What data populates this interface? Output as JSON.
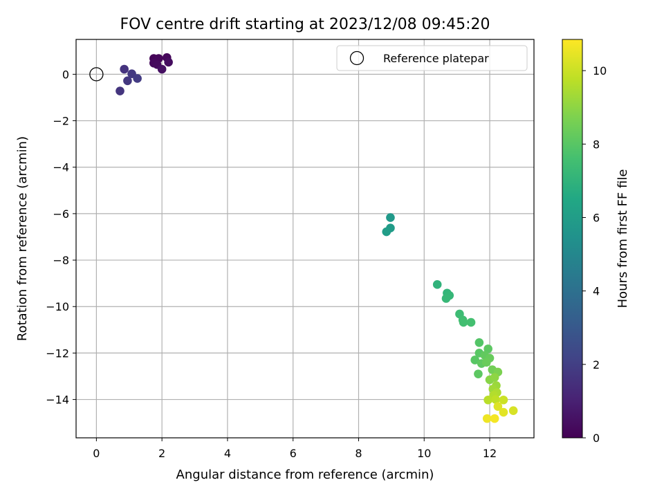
{
  "chart_data": {
    "type": "scatter",
    "title": "FOV centre drift starting at 2023/12/08 09:45:20",
    "xlabel": "Angular distance from reference (arcmin)",
    "ylabel": "Rotation from reference (arcmin)",
    "xlim": [
      -0.62,
      13.35
    ],
    "ylim": [
      -15.65,
      1.5
    ],
    "xticks": [
      0,
      2,
      4,
      6,
      8,
      10,
      12
    ],
    "yticks": [
      0,
      -2,
      -4,
      -6,
      -8,
      -10,
      -12,
      -14
    ],
    "xtick_labels": [
      "0",
      "2",
      "4",
      "6",
      "8",
      "10",
      "12"
    ],
    "ytick_labels": [
      "0",
      "−2",
      "−4",
      "−6",
      "−8",
      "−10",
      "−12",
      "−14"
    ],
    "grid": true,
    "colormap": "viridis",
    "colorbar": {
      "label": "Hours from first FF file",
      "range": [
        0,
        10.85
      ],
      "ticks": [
        0,
        2,
        4,
        6,
        8,
        10
      ],
      "tick_labels": [
        "0",
        "2",
        "4",
        "6",
        "8",
        "10"
      ]
    },
    "legend": {
      "label": "Reference platepar",
      "position": "top-right"
    },
    "reference": {
      "x": 0,
      "y": 0
    },
    "points": [
      {
        "x": 1.75,
        "y": 0.68,
        "t": 0.1
      },
      {
        "x": 1.9,
        "y": 0.68,
        "t": 0.15
      },
      {
        "x": 2.15,
        "y": 0.72,
        "t": 0.2
      },
      {
        "x": 1.75,
        "y": 0.48,
        "t": 0.25
      },
      {
        "x": 1.85,
        "y": 0.42,
        "t": 0.3
      },
      {
        "x": 2.2,
        "y": 0.52,
        "t": 0.35
      },
      {
        "x": 2.0,
        "y": 0.22,
        "t": 0.45
      },
      {
        "x": 0.85,
        "y": 0.22,
        "t": 1.6
      },
      {
        "x": 1.08,
        "y": 0.02,
        "t": 1.8
      },
      {
        "x": 1.25,
        "y": -0.18,
        "t": 1.9
      },
      {
        "x": 0.95,
        "y": -0.28,
        "t": 1.75
      },
      {
        "x": 0.72,
        "y": -0.72,
        "t": 1.65
      },
      {
        "x": 8.97,
        "y": -6.17,
        "t": 5.8
      },
      {
        "x": 8.97,
        "y": -6.62,
        "t": 5.9
      },
      {
        "x": 8.85,
        "y": -6.78,
        "t": 6.0
      },
      {
        "x": 10.4,
        "y": -9.05,
        "t": 7.0
      },
      {
        "x": 10.7,
        "y": -9.42,
        "t": 7.1
      },
      {
        "x": 10.77,
        "y": -9.52,
        "t": 7.15
      },
      {
        "x": 10.67,
        "y": -9.65,
        "t": 7.2
      },
      {
        "x": 11.08,
        "y": -10.32,
        "t": 7.4
      },
      {
        "x": 11.18,
        "y": -10.58,
        "t": 7.5
      },
      {
        "x": 11.2,
        "y": -10.68,
        "t": 7.55
      },
      {
        "x": 11.43,
        "y": -10.68,
        "t": 7.6
      },
      {
        "x": 11.68,
        "y": -11.55,
        "t": 7.9
      },
      {
        "x": 11.95,
        "y": -11.82,
        "t": 8.1
      },
      {
        "x": 11.68,
        "y": -12.0,
        "t": 8.0
      },
      {
        "x": 11.85,
        "y": -12.1,
        "t": 8.2
      },
      {
        "x": 12.0,
        "y": -12.22,
        "t": 8.3
      },
      {
        "x": 11.55,
        "y": -12.3,
        "t": 8.0
      },
      {
        "x": 11.75,
        "y": -12.45,
        "t": 8.15
      },
      {
        "x": 11.9,
        "y": -12.4,
        "t": 8.35
      },
      {
        "x": 12.08,
        "y": -12.72,
        "t": 8.5
      },
      {
        "x": 12.25,
        "y": -12.82,
        "t": 8.7
      },
      {
        "x": 11.65,
        "y": -12.9,
        "t": 8.1
      },
      {
        "x": 12.0,
        "y": -13.15,
        "t": 8.9
      },
      {
        "x": 12.15,
        "y": -13.05,
        "t": 9.0
      },
      {
        "x": 12.2,
        "y": -13.4,
        "t": 9.2
      },
      {
        "x": 12.1,
        "y": -13.55,
        "t": 9.3
      },
      {
        "x": 12.22,
        "y": -13.7,
        "t": 9.5
      },
      {
        "x": 12.12,
        "y": -13.82,
        "t": 9.6
      },
      {
        "x": 11.95,
        "y": -14.02,
        "t": 9.7
      },
      {
        "x": 12.18,
        "y": -14.0,
        "t": 9.8
      },
      {
        "x": 12.42,
        "y": -14.02,
        "t": 10.0
      },
      {
        "x": 12.25,
        "y": -14.3,
        "t": 10.3
      },
      {
        "x": 12.42,
        "y": -14.55,
        "t": 10.4
      },
      {
        "x": 12.72,
        "y": -14.48,
        "t": 10.2
      },
      {
        "x": 11.92,
        "y": -14.82,
        "t": 10.6
      },
      {
        "x": 12.15,
        "y": -14.82,
        "t": 10.7
      }
    ]
  }
}
